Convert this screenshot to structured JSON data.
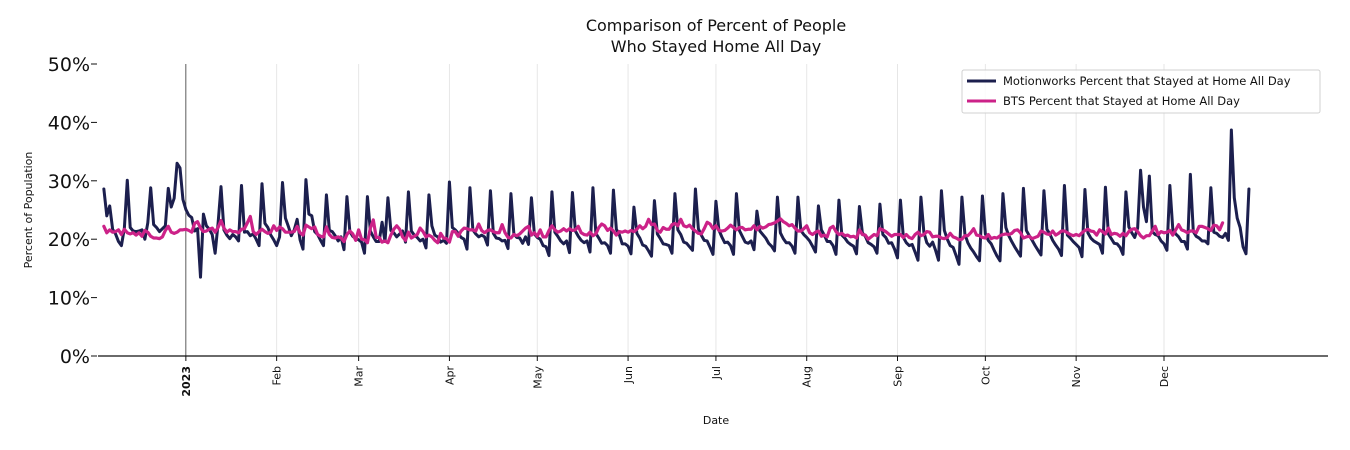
{
  "chart_data": {
    "type": "line",
    "title": "Comparison of Percent of People",
    "title_line2": "Who Stayed Home All Day",
    "xlabel": "Date",
    "ylabel": "Percent of Population",
    "ylim": [
      0,
      50
    ],
    "y_ticks": [
      "0%",
      "10%",
      "20%",
      "30%",
      "40%",
      "50%"
    ],
    "x_range_days": [
      -30,
      390
    ],
    "x_ticks": [
      {
        "label": "2023",
        "day": 0,
        "bold": true
      },
      {
        "label": "Feb",
        "day": 31,
        "bold": false
      },
      {
        "label": "Mar",
        "day": 59,
        "bold": false
      },
      {
        "label": "Apr",
        "day": 90,
        "bold": false
      },
      {
        "label": "May",
        "day": 120,
        "bold": false
      },
      {
        "label": "Jun",
        "day": 151,
        "bold": false
      },
      {
        "label": "Jul",
        "day": 181,
        "bold": false
      },
      {
        "label": "Aug",
        "day": 212,
        "bold": false
      },
      {
        "label": "Sep",
        "day": 243,
        "bold": false
      },
      {
        "label": "Oct",
        "day": 273,
        "bold": false
      },
      {
        "label": "Nov",
        "day": 304,
        "bold": false
      },
      {
        "label": "Dec",
        "day": 334,
        "bold": false
      }
    ],
    "legend_position": "top-right",
    "grid": "vertical",
    "series": [
      {
        "name": "Motionworks Percent that Stayed at Home All Day",
        "color": "#1c1f4e",
        "start_day": -28,
        "values": [
          28.6,
          24,
          25.7,
          21.7,
          20.9,
          19.6,
          18.9,
          21.9,
          30.1,
          22,
          21.4,
          21.3,
          21.4,
          21.6,
          20,
          22.8,
          28.8,
          22.5,
          22,
          21.3,
          21.8,
          22.3,
          28.7,
          25.5,
          27,
          33,
          32.2,
          26.8,
          25.1,
          24.1,
          23.7,
          21.4,
          21.8,
          13.5,
          24.3,
          22.3,
          21.7,
          20.8,
          17.6,
          22.7,
          29,
          21.6,
          20.7,
          20.1,
          20.8,
          20.4,
          19.7,
          29.2,
          21.2,
          21.3,
          20.6,
          20.9,
          20,
          18.9,
          29.5,
          22.7,
          22,
          20.7,
          19.9,
          18.9,
          20.4,
          29.7,
          23.6,
          22.2,
          20.6,
          21.6,
          23.4,
          19.9,
          18.3,
          30.2,
          24.3,
          24,
          21.3,
          20.8,
          19.8,
          18.9,
          27.6,
          21.5,
          21.3,
          20.6,
          19.7,
          20.4,
          18.2,
          27.3,
          21.3,
          20.5,
          20.1,
          19.9,
          19.5,
          17.6,
          27.3,
          21.4,
          20.4,
          19.6,
          19.6,
          22.9,
          19.6,
          27.1,
          21.5,
          21.1,
          20.4,
          20.9,
          21.4,
          19.5,
          28.1,
          21.4,
          20.7,
          20.3,
          19.7,
          20,
          18.5,
          27.6,
          22.3,
          20.7,
          20.4,
          19.5,
          19.8,
          19.3,
          29.8,
          22,
          21.6,
          21,
          20.3,
          20,
          18.3,
          28.8,
          21.6,
          20.9,
          20.4,
          20.7,
          20.4,
          19,
          28.3,
          21,
          20.2,
          20.1,
          19.7,
          19.8,
          18.4,
          27.8,
          20.9,
          20.3,
          20.2,
          19.3,
          20.4,
          19.1,
          27.1,
          20.9,
          20.3,
          20,
          18.9,
          18.7,
          17.2,
          28.1,
          21.2,
          20.5,
          19.7,
          19.2,
          19.7,
          17.7,
          28,
          21.4,
          20.5,
          19.8,
          19.4,
          19.7,
          17.8,
          28.8,
          21,
          20.2,
          19.3,
          19.4,
          18.9,
          17.6,
          28.4,
          21.7,
          20.8,
          19.2,
          19.2,
          18.8,
          17.5,
          25.5,
          21,
          20.2,
          19,
          18.8,
          18,
          17.1,
          26.6,
          20.9,
          20.1,
          19.2,
          19.1,
          18.9,
          17.6,
          27.8,
          21.6,
          20.8,
          19.5,
          19.3,
          18.7,
          18.1,
          28.6,
          21.8,
          20.7,
          19.8,
          19.7,
          18.6,
          17.4,
          26.5,
          21.6,
          20.4,
          19.4,
          19.5,
          18.9,
          17.4,
          27.8,
          21.5,
          20.5,
          19.5,
          19.3,
          19.7,
          18.2,
          24.8,
          21.4,
          20.8,
          20.2,
          19.3,
          18.8,
          18,
          27.2,
          21.1,
          20.1,
          19.4,
          19.4,
          18.8,
          17.6,
          27.2,
          21.5,
          20.8,
          20.3,
          19.7,
          18.8,
          17.8,
          25.7,
          21.6,
          20.7,
          19.6,
          19.6,
          18.9,
          17.4,
          26.7,
          20.7,
          20.2,
          19.5,
          19.1,
          18.8,
          17.5,
          25.6,
          21.1,
          20.5,
          19.4,
          19.1,
          18.7,
          17.6,
          26,
          20.8,
          20.3,
          19.3,
          19.4,
          18.3,
          16.8,
          26.7,
          20.3,
          19.4,
          18.9,
          19.1,
          17.8,
          16.4,
          27.2,
          21.2,
          19.4,
          18.8,
          19.5,
          18.1,
          16.4,
          28.3,
          21.5,
          20,
          18.9,
          18.6,
          17.2,
          15.7,
          27.2,
          20.9,
          19.4,
          18.5,
          17.8,
          17,
          16.3,
          27.4,
          20.9,
          19.8,
          19.2,
          18.1,
          17.1,
          16.3,
          27.8,
          22,
          20.6,
          19.6,
          18.7,
          17.9,
          17.1,
          28.7,
          21.5,
          20.6,
          19.8,
          18.9,
          18.1,
          17.3,
          28.3,
          21.7,
          20.9,
          19.8,
          19,
          18.3,
          17.2,
          29.2,
          20.7,
          20.2,
          19.6,
          19.1,
          18.6,
          17,
          28.5,
          21.1,
          20.2,
          19.7,
          19.4,
          19.1,
          17.6,
          28.9,
          20.9,
          20.1,
          19.3,
          19.2,
          18.6,
          17.4,
          28.1,
          22.1,
          21.1,
          20.3,
          21.9,
          31.8,
          25.5,
          23,
          30.8,
          21.3,
          20.8,
          20.6,
          19.7,
          19.2,
          18.1,
          29.2,
          21.7,
          20.9,
          20.4,
          19.6,
          19.6,
          18.3,
          31.1,
          21.3,
          20.5,
          20.2,
          19.7,
          19.7,
          19.2,
          28.8,
          21.2,
          21,
          20.5,
          20.3,
          21,
          19.8,
          38.7,
          27.1,
          23.6,
          22,
          18.7,
          17.5,
          28.6
        ]
      },
      {
        "name": "BTS Percent that Stayed at Home All Day",
        "color": "#cc2288",
        "start_day": -28,
        "values": [
          22.2,
          21.1,
          21.6,
          21.2,
          21.3,
          21.6,
          20.8,
          21.7,
          21.1,
          20.9,
          21.1,
          20.7,
          21.1,
          20.5,
          21.5,
          21.2,
          20.5,
          20.2,
          20.2,
          20.1,
          20.4,
          21.5,
          22.2,
          21.2,
          21,
          21.2,
          21.6,
          21.6,
          21.7,
          21.5,
          21.2,
          22.7,
          23,
          21.9,
          21.3,
          21.4,
          21.7,
          21.9,
          21.2,
          22,
          23.2,
          21.9,
          21.2,
          21.6,
          21.3,
          21.3,
          21.1,
          21.7,
          21.8,
          22.8,
          23.9,
          21.3,
          20.8,
          21.3,
          21.7,
          21.3,
          21,
          21.2,
          22.3,
          21.5,
          22.1,
          21.8,
          21.2,
          21.2,
          21.2,
          21.3,
          22.2,
          21.1,
          20.7,
          22.4,
          22.1,
          21.8,
          22.1,
          20.8,
          20.5,
          20.4,
          22.1,
          20.8,
          20.3,
          20.2,
          20.4,
          20.2,
          19.6,
          20.8,
          21.4,
          20.9,
          19.8,
          21.6,
          20,
          19.9,
          19.4,
          21.9,
          23.3,
          20.3,
          20.3,
          19.5,
          19.7,
          19.4,
          20.7,
          21.7,
          22.3,
          21.7,
          20.4,
          19.8,
          21.2,
          20.2,
          20.5,
          20.8,
          21.9,
          21.3,
          20.4,
          20.7,
          20.4,
          19.8,
          19.4,
          21,
          20.2,
          20.1,
          19.5,
          21.3,
          21.3,
          20.5,
          21.4,
          21.9,
          21.8,
          21.6,
          21.6,
          21.4,
          22.6,
          21.5,
          21.1,
          21.5,
          21.6,
          21.3,
          21.1,
          21.1,
          22.5,
          21.1,
          20.3,
          20.2,
          20.8,
          20.6,
          20.9,
          21.4,
          21.9,
          22.2,
          20.7,
          21.1,
          20.5,
          21.6,
          20.4,
          20.4,
          21.5,
          22.3,
          21.6,
          21.2,
          21.4,
          21.8,
          21.4,
          21.8,
          21.5,
          21.6,
          22.2,
          21.1,
          20.8,
          20.7,
          21.2,
          20.6,
          20.9,
          22,
          22.6,
          22.3,
          21.5,
          21.9,
          21.4,
          20.7,
          21.3,
          21.2,
          21.4,
          21.2,
          21.5,
          21.3,
          21.7,
          22.3,
          21.8,
          22.2,
          23.4,
          22.5,
          22.6,
          21.5,
          21.2,
          22,
          21.7,
          21.7,
          22.5,
          22.7,
          22.3,
          23.4,
          22.3,
          22.1,
          22.4,
          21.8,
          21.4,
          21,
          20.9,
          21.8,
          22.9,
          22.6,
          21.8,
          22.3,
          21.5,
          21.4,
          21.5,
          21.9,
          22.4,
          22,
          21.6,
          22,
          22,
          21.6,
          21.7,
          21.7,
          22.3,
          21.6,
          22.2,
          21.9,
          22.1,
          22.5,
          22.6,
          22.8,
          23.1,
          23.5,
          23,
          22.7,
          22.3,
          22.5,
          21.9,
          21.4,
          21.4,
          21.8,
          22.3,
          21.1,
          20.8,
          21.2,
          21.4,
          20.5,
          20.7,
          20.4,
          21.9,
          22.2,
          21.3,
          20.8,
          21,
          20.6,
          20.7,
          20.4,
          20.5,
          20.2,
          21.6,
          20.8,
          20.7,
          20,
          20.4,
          20.8,
          20.6,
          21.8,
          21.6,
          21.3,
          20.9,
          20.5,
          20.8,
          20.8,
          20.8,
          20.3,
          20.8,
          20.3,
          20.1,
          20.8,
          21.2,
          20.6,
          20.8,
          21.3,
          21.2,
          20.4,
          20.5,
          20.5,
          20.2,
          20.1,
          20.3,
          21,
          20.4,
          20.2,
          19.9,
          20,
          20.6,
          20.6,
          21.1,
          21.8,
          20.7,
          20.6,
          20.3,
          20.2,
          20.8,
          20.1,
          20.3,
          20.2,
          20.6,
          20.8,
          20.9,
          20.8,
          21,
          21.5,
          21.6,
          21.1,
          20.2,
          20.4,
          20.5,
          20.1,
          20.3,
          20.5,
          21.4,
          21.2,
          20.9,
          20.8,
          21.4,
          20.7,
          21,
          21.4,
          21.4,
          21.1,
          20.8,
          20.6,
          20.8,
          20.6,
          21.1,
          21.5,
          21.7,
          21.4,
          21.3,
          20.7,
          21.6,
          21.3,
          20.9,
          21.9,
          20.8,
          21,
          20.9,
          20.5,
          21,
          20.6,
          21.3,
          21.7,
          21.8,
          21.3,
          20.6,
          20.2,
          20.6,
          20.6,
          21.4,
          22.2,
          20.8,
          21.3,
          21.1,
          21.2,
          21.5,
          20.7,
          21.6,
          22.5,
          21.6,
          21.4,
          21.1,
          21.4,
          21.4,
          21.1,
          22.2,
          22.2,
          22,
          21.8,
          21.5,
          22.4,
          22.3,
          21.6,
          22.8
        ]
      }
    ]
  }
}
